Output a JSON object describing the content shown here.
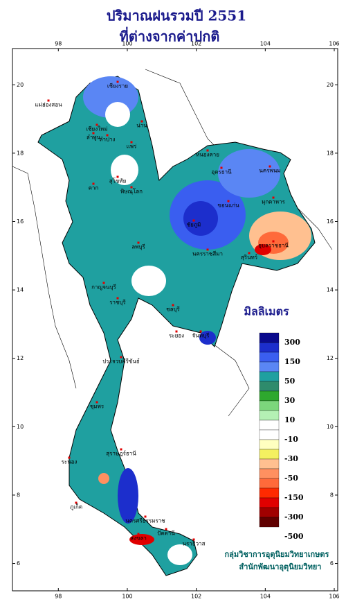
{
  "title": {
    "line1": "ปริมาณฝนรวมปี 2551",
    "line2": "ที่ต่างจากค่าปกติ"
  },
  "map": {
    "xlim": [
      96.67,
      106.1
    ],
    "ylim": [
      5.2,
      21.06
    ],
    "lon_ticks": [
      98,
      100,
      102,
      104,
      106
    ],
    "lat_ticks": [
      20,
      18,
      16,
      14,
      12,
      10,
      8,
      6
    ],
    "places": [
      "เชียงราย",
      "แม่ฮ่องสอน",
      "เชียงใหม่",
      "ลำพูน",
      "ลำปาง",
      "น่าน",
      "แพร่",
      "ตาก",
      "สุโขทัย",
      "พิษณุโลก",
      "หนองคาย",
      "อุดรธานี",
      "นครพนม",
      "มุกดาหาร",
      "ขอนแก่น",
      "ชัยภูมิ",
      "อุบลราชธานี",
      "สุรินทร์",
      "นครราชสีมา",
      "ลพบุรี",
      "กาญจนบุรี",
      "ราชบุรี",
      "ชลบุรี",
      "ระยอง",
      "จันทบุรี",
      "ประจวบคีรีขันธ์",
      "ชุมพร",
      "ระนอง",
      "สุราษฎร์ธานี",
      "ภูเก็ต",
      "นครศรีธรรมราช",
      "สงขลา",
      "ปัตตานี",
      "นราธิวาส"
    ]
  },
  "legend": {
    "title": "มิลลิเมตร",
    "colors": [
      "#0a0a8c",
      "#1c2ecc",
      "#3a5ef0",
      "#5a86f4",
      "#1fa0a0",
      "#2e8b6c",
      "#2ea82e",
      "#7cd67c",
      "#b4f0b4",
      "#ffffff",
      "#ffffff",
      "#ffffc0",
      "#f4f060",
      "#ffc090",
      "#ff9060",
      "#ff6a3a",
      "#ff2a00",
      "#e00000",
      "#a00000",
      "#600000"
    ],
    "labels": [
      "300",
      "150",
      "50",
      "30",
      "10",
      "-10",
      "-30",
      "-50",
      "-150",
      "-300",
      "-500"
    ]
  },
  "credits": [
    "กลุ่มวิชาการอุตุนิยมวิทยาเกษตร",
    "สำนักพัฒนาอุตุนิยมวิทยา"
  ]
}
